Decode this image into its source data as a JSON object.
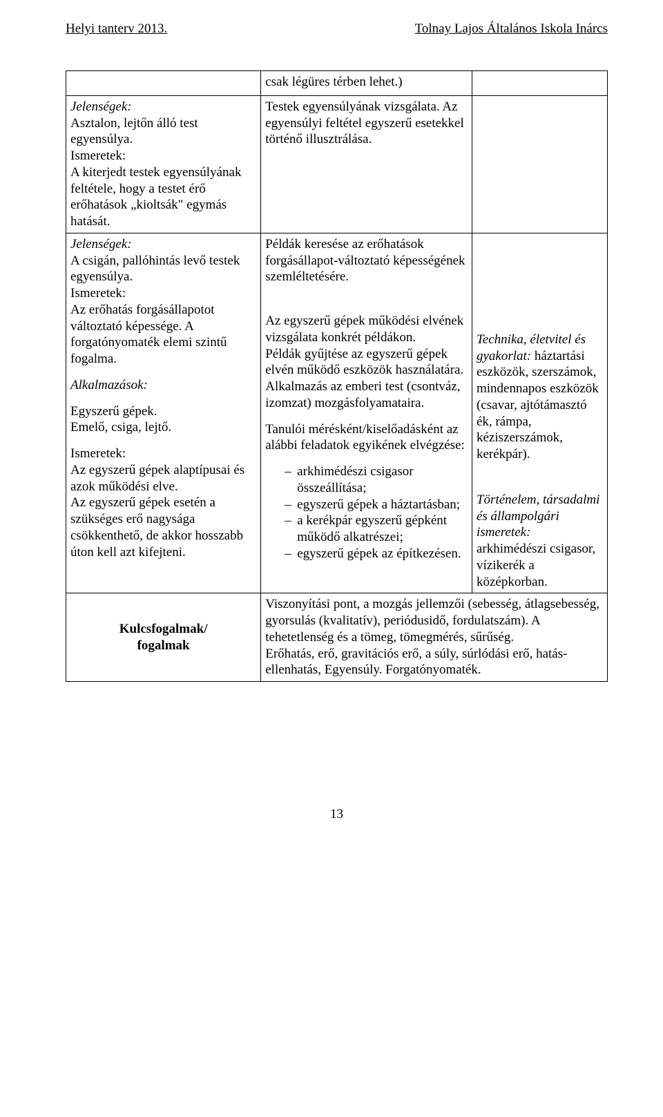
{
  "header": {
    "left": "Helyi tanterv 2013.",
    "right": "Tolnay Lajos Általános Iskola Inárcs"
  },
  "row0": {
    "c2": "csak légüres térben lehet.)"
  },
  "row1": {
    "c1": {
      "title": "Jelenségek:",
      "p1": "Asztalon, lejtőn álló test egyensúlya.",
      "p2a": "Ismeretek:",
      "p2b": "A kiterjedt testek egyensúlyának feltétele, hogy a testet érő erőhatások „kioltsák\" egymás hatását."
    },
    "c2": "Testek egyensúlyának vizsgálata. Az egyensúlyi feltétel egyszerű esetekkel történő illusztrálása."
  },
  "row2": {
    "c1a": {
      "title": "Jelenségek:",
      "p1": "A csigán, pallóhintás levő testek egyensúlya.",
      "p2a": "Ismeretek:",
      "p2b": "Az erőhatás forgásállapotot változtató képessége. A forgatónyomaték elemi szintű fogalma."
    },
    "c1b": {
      "title": "Alkalmazások:",
      "p1": "Egyszerű gépek.",
      "p2": "Emelő, csiga, lejtő.",
      "p3a": "Ismeretek:",
      "p3b": "Az egyszerű gépek alaptípusai és azok működési elve.",
      "p4": "Az egyszerű gépek esetén a szükséges erő nagysága csökkenthető, de akkor hosszabb úton kell azt kifejteni."
    },
    "c2a": "Példák keresése az erőhatások forgásállapot-változtató képességének szemléltetésére.",
    "c2b": {
      "p1": "Az egyszerű gépek működési elvének vizsgálata konkrét példákon.",
      "p2": "Példák gyűjtése az egyszerű gépek elvén működő eszközök használatára.",
      "p3": "Alkalmazás az emberi test (csontváz, izomzat) mozgásfolyamataira.",
      "p4": "Tanulói mérésként/kiselőadásként az alábbi feladatok egyikének elvégzése:",
      "li1": "arkhimédészi csigasor összeállítása;",
      "li2": "egyszerű gépek a háztartásban;",
      "li3": "a kerékpár egyszerű gépként működő alkatrészei;",
      "li4": "egyszerű gépek az építkezésen."
    },
    "c3a": {
      "p1a": "Technika, életvitel és gyakorlat:",
      "p1b": " háztartási eszközök, szerszámok, mindennapos eszközök (csavar, ajtótámasztó ék, rámpa, kéziszerszámok, kerékpár)."
    },
    "c3b": {
      "p1a": "Történelem, társadalmi és állampolgári ismeretek:",
      "p1b": " arkhimédészi csigasor, vízikerék a középkorban."
    }
  },
  "kulcs": {
    "label1": "Kulcsfogalmak/",
    "label2": "fogalmak",
    "text": "Viszonyítási pont, a mozgás jellemzői (sebesség, átlagsebesség, gyorsulás (kvalitatív), periódusidő, fordulatszám). A tehetetlenség és a tömeg, tömegmérés, sűrűség.\nErőhatás, erő, gravitációs erő, a súly, súrlódási erő, hatás-ellenhatás, Egyensúly. Forgatónyomaték."
  },
  "pageNumber": "13"
}
